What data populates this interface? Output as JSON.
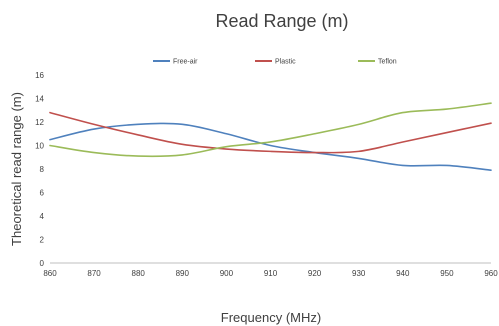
{
  "chart_data": {
    "type": "line",
    "title": "Read Range (m)",
    "xlabel": "Frequency (MHz)",
    "ylabel": "Theoretical read range (m)",
    "x": [
      860,
      870,
      880,
      890,
      900,
      910,
      920,
      930,
      940,
      950,
      960
    ],
    "xlim": [
      860,
      960
    ],
    "ylim": [
      0,
      16
    ],
    "y_ticks": [
      0,
      2,
      4,
      6,
      8,
      10,
      12,
      14,
      16
    ],
    "grid": false,
    "legend_position": "top",
    "series": [
      {
        "name": "Free-air",
        "color": "#4f81bd",
        "values": [
          10.5,
          11.4,
          11.8,
          11.8,
          11.0,
          10.0,
          9.4,
          8.9,
          8.3,
          8.3,
          7.9
        ]
      },
      {
        "name": "Plastic",
        "color": "#c0504d",
        "values": [
          12.8,
          11.8,
          10.9,
          10.1,
          9.7,
          9.5,
          9.4,
          9.5,
          10.3,
          11.1,
          11.9
        ]
      },
      {
        "name": "Teflon",
        "color": "#9bbb59",
        "values": [
          10.0,
          9.4,
          9.1,
          9.2,
          9.9,
          10.3,
          11.0,
          11.8,
          12.8,
          13.1,
          13.6
        ]
      }
    ]
  }
}
